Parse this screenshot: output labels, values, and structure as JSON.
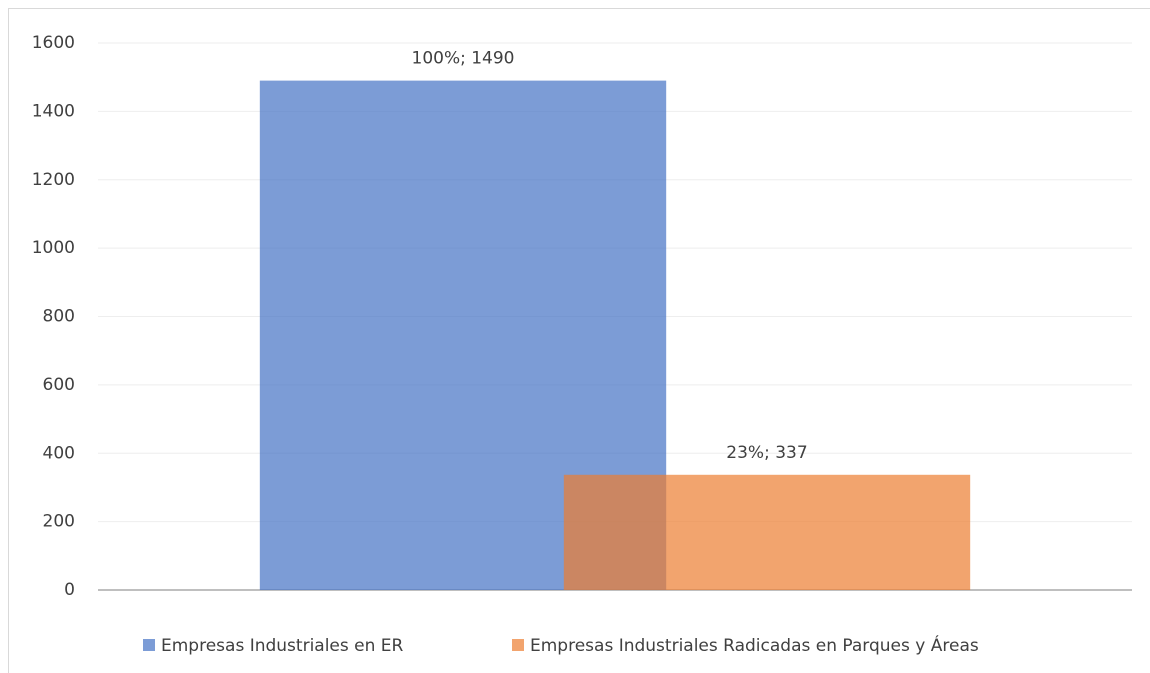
{
  "chart_data": {
    "type": "bar",
    "categories": [
      null
    ],
    "series": [
      {
        "name": "Empresas Industriales en ER",
        "color": "#4472c4",
        "values": [
          1490
        ],
        "value_labels": [
          "100%; 1490"
        ]
      },
      {
        "name": "Empresas Industriales Radicadas en Parques y Áreas",
        "color": "#ed7d31",
        "values": [
          337
        ],
        "value_labels": [
          "23%; 337"
        ]
      }
    ],
    "ylim": [
      0,
      1600
    ],
    "yticks": [
      0,
      200,
      400,
      600,
      800,
      1000,
      1200,
      1400,
      1600
    ],
    "grid": true,
    "legend": "bottom"
  }
}
